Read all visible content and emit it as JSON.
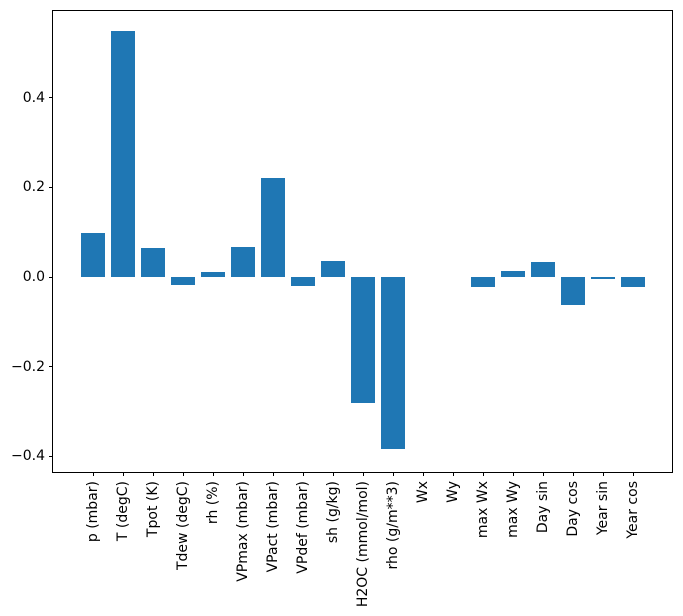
{
  "chart_data": {
    "type": "bar",
    "title": "",
    "xlabel": "",
    "ylabel": "",
    "categories": [
      "p (mbar)",
      "T (degC)",
      "Tpot (K)",
      "Tdew (degC)",
      "rh (%)",
      "VPmax (mbar)",
      "VPact (mbar)",
      "VPdef (mbar)",
      "sh (g/kg)",
      "H2OC (mmol/mol)",
      "rho (g/m**3)",
      "Wx",
      "Wy",
      "max Wx",
      "max Wy",
      "Day sin",
      "Day cos",
      "Year sin",
      "Year cos"
    ],
    "values": [
      0.098,
      0.549,
      0.064,
      -0.018,
      0.011,
      0.067,
      0.222,
      -0.02,
      0.035,
      -0.281,
      -0.384,
      0.0,
      0.0,
      -0.023,
      0.014,
      0.034,
      -0.062,
      -0.004,
      -0.022
    ],
    "yticks": [
      0.4,
      0.2,
      0.0,
      -0.2,
      -0.4
    ],
    "ytick_labels": [
      "0.4",
      "0.2",
      "0.0",
      "−0.2",
      "−0.4"
    ],
    "ylim": [
      -0.433,
      0.596
    ],
    "bar_color": "#1f77b4",
    "axis_color": "#000000",
    "background_color": "#ffffff",
    "grid": false,
    "legend": null
  }
}
